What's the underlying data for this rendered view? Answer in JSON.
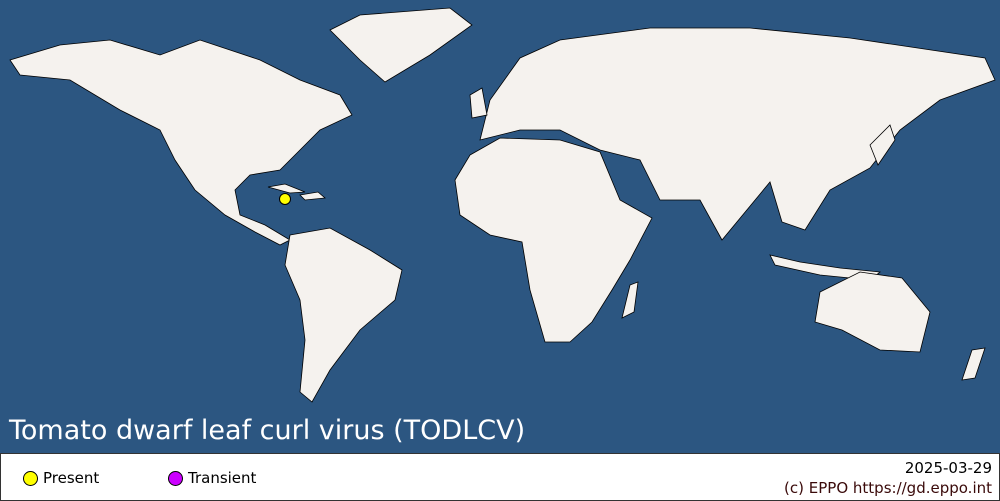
{
  "title": "Tomato dwarf leaf curl virus (TODLCV)",
  "colors": {
    "ocean": "#2c5681",
    "land": "#f5f2ee",
    "present": "#ffff00",
    "transient": "#cc00ff"
  },
  "legend": [
    {
      "label": "Present",
      "color": "#ffff00"
    },
    {
      "label": "Transient",
      "color": "#cc00ff"
    }
  ],
  "records": [
    {
      "country": "Jamaica",
      "status": "Present"
    }
  ],
  "date": "2025-03-29",
  "credit": "(c) EPPO https://gd.eppo.int"
}
